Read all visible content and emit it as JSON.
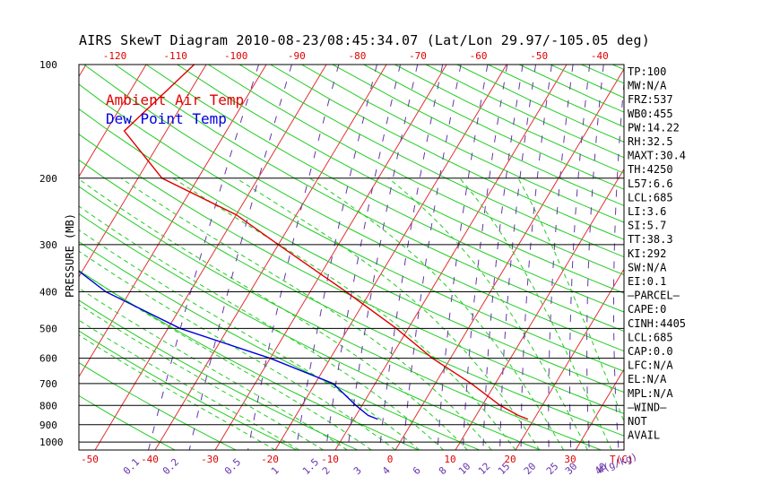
{
  "chart_data": {
    "type": "line",
    "title": "AIRS SkewT Diagram 2010-08-23/08:45:34.07 (Lat/Lon 29.97/-105.05 deg)",
    "ylabel": "PRESSURE (MB)",
    "xlabel": "T(C)",
    "mixing_ratio_unit": "W(g/kg)",
    "legend": [
      "Ambient Air Temp",
      "Dew Point Temp"
    ],
    "legend_colors": {
      "temp": "#e00000",
      "dew": "#0000e0"
    },
    "pressure_ticks": [
      100,
      200,
      300,
      400,
      500,
      600,
      700,
      800,
      900,
      1000
    ],
    "pressure_range": [
      100,
      1050
    ],
    "bottom_temp_ticks": [
      -50,
      -40,
      -30,
      -20,
      -10,
      0,
      10,
      20,
      30
    ],
    "top_temp_ticks": [
      -120,
      -110,
      -100,
      -90,
      -80,
      -70,
      -60,
      -50,
      -40
    ],
    "mixing_ratio_ticks": [
      "0.1",
      "0.2",
      "0.5",
      "1",
      "1.5",
      "2",
      "3",
      "4",
      "6",
      "8",
      "10",
      "12",
      "15",
      "20",
      "25",
      "30",
      "40"
    ],
    "series": [
      {
        "name": "Ambient Air Temp",
        "color": "#e00000",
        "points": [
          {
            "p": 100,
            "t": -72
          },
          {
            "p": 150,
            "t": -77
          },
          {
            "p": 200,
            "t": -66
          },
          {
            "p": 250,
            "t": -50
          },
          {
            "p": 300,
            "t": -40
          },
          {
            "p": 400,
            "t": -24
          },
          {
            "p": 500,
            "t": -12
          },
          {
            "p": 600,
            "t": -3
          },
          {
            "p": 700,
            "t": 6
          },
          {
            "p": 800,
            "t": 13
          },
          {
            "p": 850,
            "t": 17
          },
          {
            "p": 870,
            "t": 19
          }
        ]
      },
      {
        "name": "Dew Point Temp",
        "color": "#0000e0",
        "points": [
          {
            "p": 100,
            "t": -95
          },
          {
            "p": 150,
            "t": -104
          },
          {
            "p": 200,
            "t": -97
          },
          {
            "p": 250,
            "t": -85
          },
          {
            "p": 300,
            "t": -79
          },
          {
            "p": 400,
            "t": -64
          },
          {
            "p": 500,
            "t": -48
          },
          {
            "p": 600,
            "t": -30
          },
          {
            "p": 700,
            "t": -17
          },
          {
            "p": 800,
            "t": -11
          },
          {
            "p": 850,
            "t": -8
          },
          {
            "p": 870,
            "t": -6
          }
        ]
      }
    ]
  },
  "indices": [
    "TP:100",
    "MW:N/A",
    "FRZ:537",
    "WB0:455",
    "PW:14.22",
    "RH:32.5",
    "MAXT:30.4",
    "TH:4250",
    "L57:6.6",
    "LCL:685",
    "LI:3.6",
    "SI:5.7",
    "TT:38.3",
    "KI:292",
    "SW:N/A",
    "EI:0.1",
    "—PARCEL—",
    "CAPE:0",
    "CINH:4405",
    "LCL:685",
    "CAP:0.0",
    "LFC:N/A",
    "EL:N/A",
    "MPL:N/A",
    "—WIND—",
    " NOT",
    " AVAIL"
  ]
}
